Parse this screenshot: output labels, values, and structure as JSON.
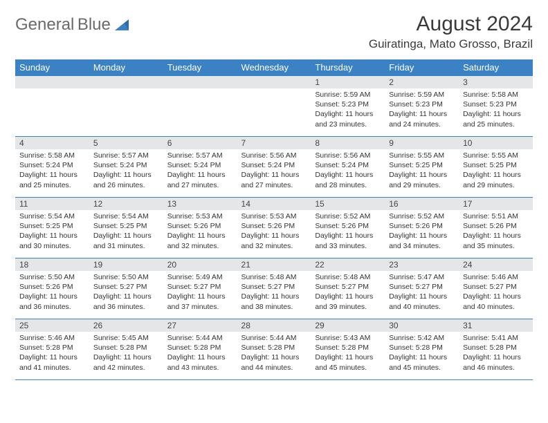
{
  "brand": {
    "part1": "General",
    "part2": "Blue"
  },
  "title": "August 2024",
  "location": "Guiratinga, Mato Grosso, Brazil",
  "colors": {
    "header_bg": "#3b82c4",
    "header_text": "#ffffff",
    "daynum_bg": "#e4e6e8",
    "border": "#3b82c4",
    "text": "#333333",
    "brand_gray": "#6a6a6a",
    "brand_blue": "#3b82c4"
  },
  "weekdays": [
    "Sunday",
    "Monday",
    "Tuesday",
    "Wednesday",
    "Thursday",
    "Friday",
    "Saturday"
  ],
  "grid": {
    "start_weekday_index": 4,
    "days_in_month": 31
  },
  "days": {
    "1": {
      "sunrise": "5:59 AM",
      "sunset": "5:23 PM",
      "daylight": "11 hours and 23 minutes."
    },
    "2": {
      "sunrise": "5:59 AM",
      "sunset": "5:23 PM",
      "daylight": "11 hours and 24 minutes."
    },
    "3": {
      "sunrise": "5:58 AM",
      "sunset": "5:23 PM",
      "daylight": "11 hours and 25 minutes."
    },
    "4": {
      "sunrise": "5:58 AM",
      "sunset": "5:24 PM",
      "daylight": "11 hours and 25 minutes."
    },
    "5": {
      "sunrise": "5:57 AM",
      "sunset": "5:24 PM",
      "daylight": "11 hours and 26 minutes."
    },
    "6": {
      "sunrise": "5:57 AM",
      "sunset": "5:24 PM",
      "daylight": "11 hours and 27 minutes."
    },
    "7": {
      "sunrise": "5:56 AM",
      "sunset": "5:24 PM",
      "daylight": "11 hours and 27 minutes."
    },
    "8": {
      "sunrise": "5:56 AM",
      "sunset": "5:24 PM",
      "daylight": "11 hours and 28 minutes."
    },
    "9": {
      "sunrise": "5:55 AM",
      "sunset": "5:25 PM",
      "daylight": "11 hours and 29 minutes."
    },
    "10": {
      "sunrise": "5:55 AM",
      "sunset": "5:25 PM",
      "daylight": "11 hours and 29 minutes."
    },
    "11": {
      "sunrise": "5:54 AM",
      "sunset": "5:25 PM",
      "daylight": "11 hours and 30 minutes."
    },
    "12": {
      "sunrise": "5:54 AM",
      "sunset": "5:25 PM",
      "daylight": "11 hours and 31 minutes."
    },
    "13": {
      "sunrise": "5:53 AM",
      "sunset": "5:26 PM",
      "daylight": "11 hours and 32 minutes."
    },
    "14": {
      "sunrise": "5:53 AM",
      "sunset": "5:26 PM",
      "daylight": "11 hours and 32 minutes."
    },
    "15": {
      "sunrise": "5:52 AM",
      "sunset": "5:26 PM",
      "daylight": "11 hours and 33 minutes."
    },
    "16": {
      "sunrise": "5:52 AM",
      "sunset": "5:26 PM",
      "daylight": "11 hours and 34 minutes."
    },
    "17": {
      "sunrise": "5:51 AM",
      "sunset": "5:26 PM",
      "daylight": "11 hours and 35 minutes."
    },
    "18": {
      "sunrise": "5:50 AM",
      "sunset": "5:26 PM",
      "daylight": "11 hours and 36 minutes."
    },
    "19": {
      "sunrise": "5:50 AM",
      "sunset": "5:27 PM",
      "daylight": "11 hours and 36 minutes."
    },
    "20": {
      "sunrise": "5:49 AM",
      "sunset": "5:27 PM",
      "daylight": "11 hours and 37 minutes."
    },
    "21": {
      "sunrise": "5:48 AM",
      "sunset": "5:27 PM",
      "daylight": "11 hours and 38 minutes."
    },
    "22": {
      "sunrise": "5:48 AM",
      "sunset": "5:27 PM",
      "daylight": "11 hours and 39 minutes."
    },
    "23": {
      "sunrise": "5:47 AM",
      "sunset": "5:27 PM",
      "daylight": "11 hours and 40 minutes."
    },
    "24": {
      "sunrise": "5:46 AM",
      "sunset": "5:27 PM",
      "daylight": "11 hours and 40 minutes."
    },
    "25": {
      "sunrise": "5:46 AM",
      "sunset": "5:28 PM",
      "daylight": "11 hours and 41 minutes."
    },
    "26": {
      "sunrise": "5:45 AM",
      "sunset": "5:28 PM",
      "daylight": "11 hours and 42 minutes."
    },
    "27": {
      "sunrise": "5:44 AM",
      "sunset": "5:28 PM",
      "daylight": "11 hours and 43 minutes."
    },
    "28": {
      "sunrise": "5:44 AM",
      "sunset": "5:28 PM",
      "daylight": "11 hours and 44 minutes."
    },
    "29": {
      "sunrise": "5:43 AM",
      "sunset": "5:28 PM",
      "daylight": "11 hours and 45 minutes."
    },
    "30": {
      "sunrise": "5:42 AM",
      "sunset": "5:28 PM",
      "daylight": "11 hours and 45 minutes."
    },
    "31": {
      "sunrise": "5:41 AM",
      "sunset": "5:28 PM",
      "daylight": "11 hours and 46 minutes."
    }
  },
  "labels": {
    "sunrise": "Sunrise:",
    "sunset": "Sunset:",
    "daylight": "Daylight:"
  }
}
